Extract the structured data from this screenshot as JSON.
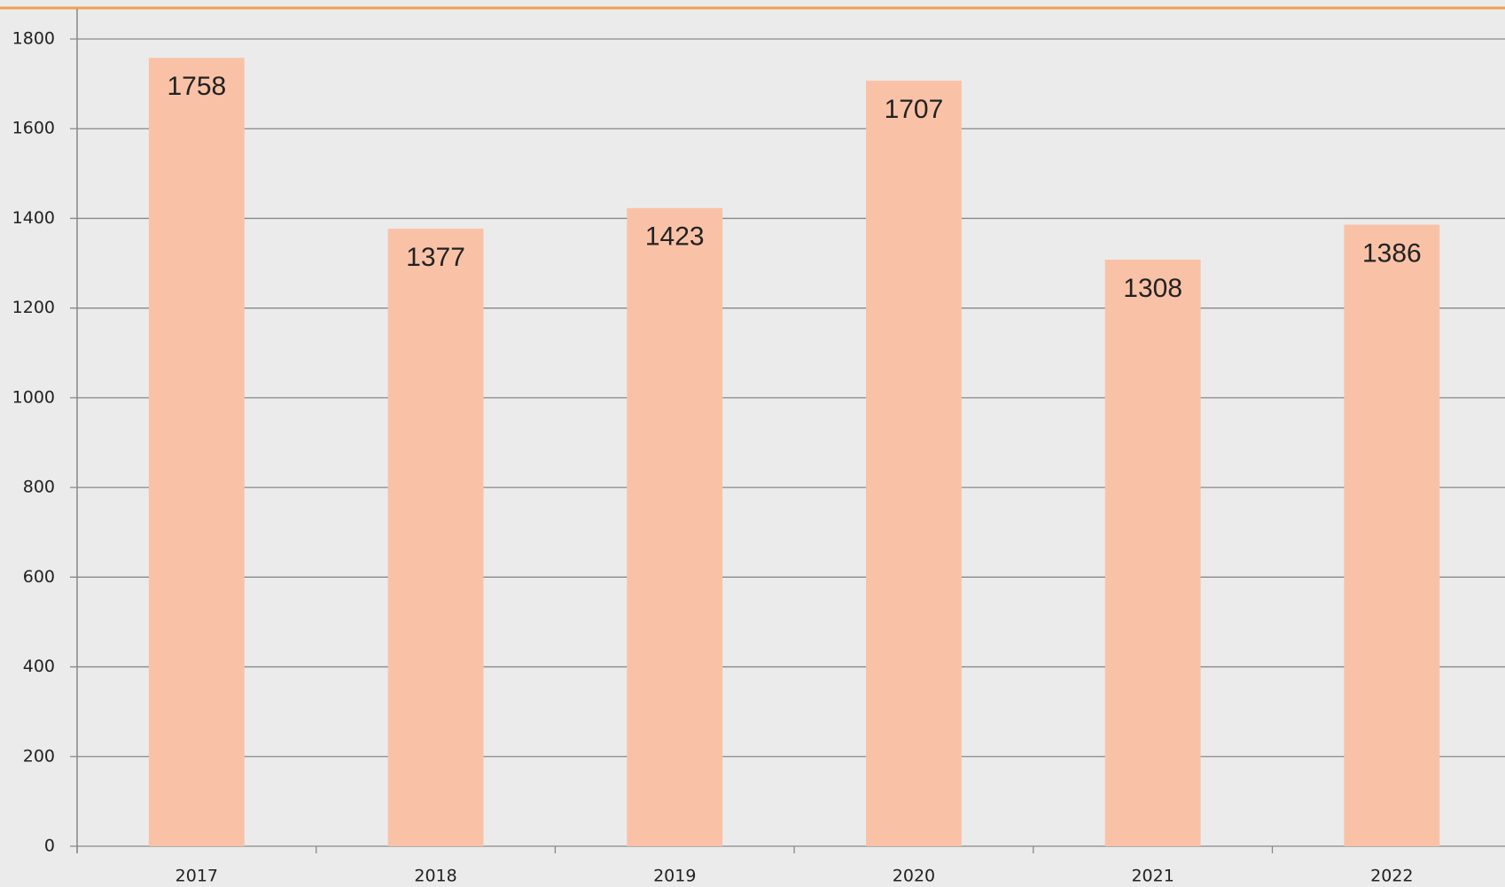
{
  "chart_data": {
    "type": "bar",
    "categories": [
      "2017",
      "2018",
      "2019",
      "2020",
      "2021",
      "2022"
    ],
    "values": [
      1758,
      1377,
      1423,
      1707,
      1308,
      1386
    ],
    "color": "#f9c2a7",
    "ylim": [
      0,
      1800
    ],
    "yticks": [
      0,
      200,
      400,
      600,
      800,
      1000,
      1200,
      1400,
      1600,
      1800
    ],
    "grid": true
  }
}
